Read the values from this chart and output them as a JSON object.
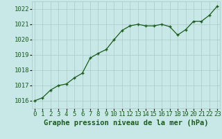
{
  "x": [
    0,
    1,
    2,
    3,
    4,
    5,
    6,
    7,
    8,
    9,
    10,
    11,
    12,
    13,
    14,
    15,
    16,
    17,
    18,
    19,
    20,
    21,
    22,
    23
  ],
  "y": [
    1016.0,
    1016.2,
    1016.7,
    1017.0,
    1017.1,
    1017.5,
    1017.8,
    1018.8,
    1019.1,
    1019.35,
    1020.0,
    1020.6,
    1020.9,
    1021.0,
    1020.9,
    1020.9,
    1021.0,
    1020.85,
    1020.3,
    1020.65,
    1021.2,
    1021.2,
    1021.6,
    1022.2
  ],
  "ylim": [
    1015.5,
    1022.5
  ],
  "yticks": [
    1016,
    1017,
    1018,
    1019,
    1020,
    1021,
    1022
  ],
  "xticks": [
    0,
    1,
    2,
    3,
    4,
    5,
    6,
    7,
    8,
    9,
    10,
    11,
    12,
    13,
    14,
    15,
    16,
    17,
    18,
    19,
    20,
    21,
    22,
    23
  ],
  "line_color": "#1a5c1a",
  "marker_color": "#1a5c1a",
  "bg_color": "#c8e8e8",
  "grid_color": "#aac8c8",
  "xlabel": "Graphe pression niveau de la mer (hPa)",
  "xlabel_color": "#1a5c1a",
  "tick_label_color": "#1a5c1a",
  "tick_label_size": 6.5,
  "xlabel_size": 7.5,
  "xlim": [
    -0.3,
    23.3
  ]
}
